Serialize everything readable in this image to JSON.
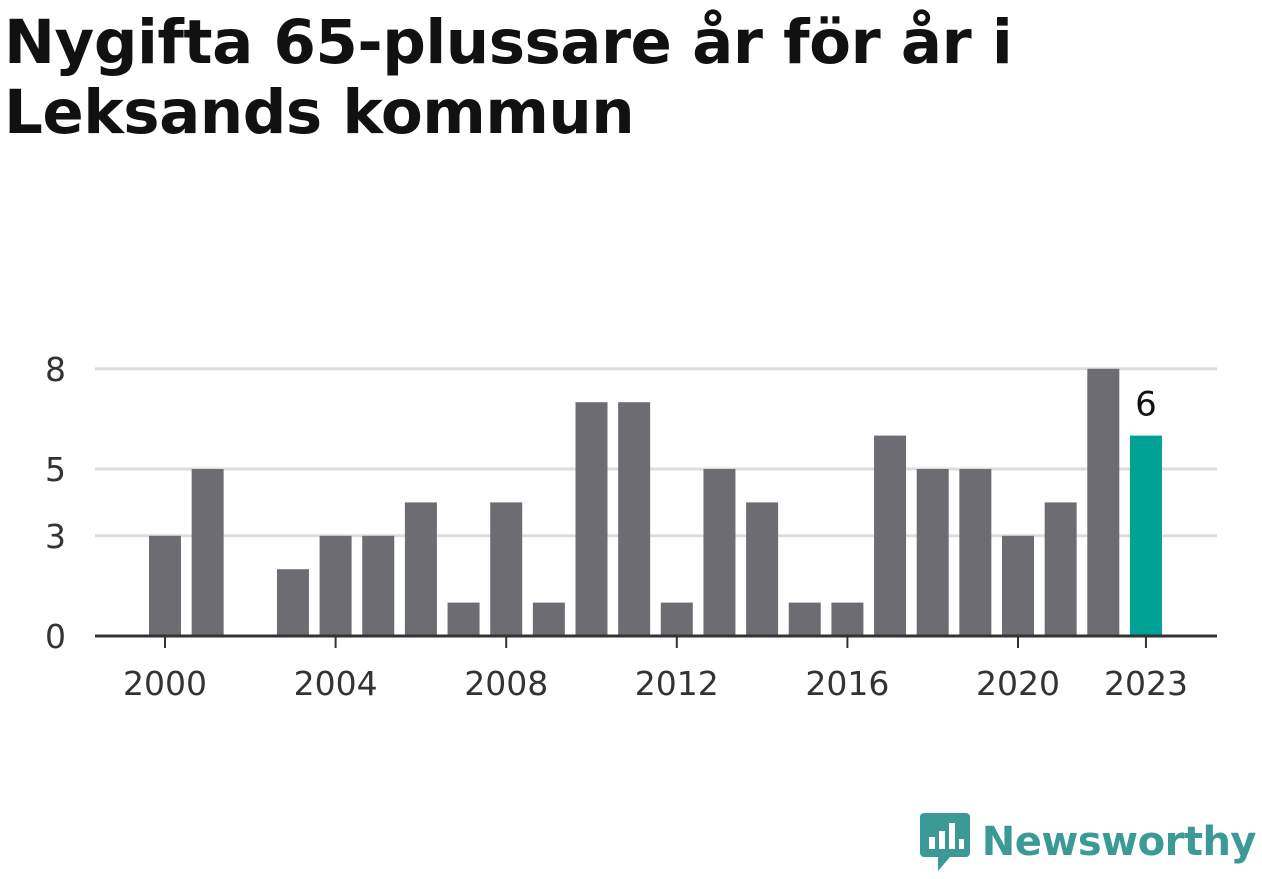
{
  "title": "Nygifta 65-plussare år för år i Leksands kommun",
  "brand": {
    "name": "Newsworthy",
    "icon": "newsworthy-logo-icon"
  },
  "colors": {
    "bar": "#6d6c72",
    "highlight": "#00a296",
    "grid": "#dddddd",
    "axis": "#333333"
  },
  "chart_data": {
    "type": "bar",
    "categories": [
      2000,
      2001,
      2002,
      2003,
      2004,
      2005,
      2006,
      2007,
      2008,
      2009,
      2010,
      2011,
      2012,
      2013,
      2014,
      2015,
      2016,
      2017,
      2018,
      2019,
      2020,
      2021,
      2022,
      2023
    ],
    "values": [
      3,
      5,
      0,
      2,
      3,
      3,
      4,
      1,
      4,
      1,
      7,
      7,
      1,
      5,
      4,
      1,
      1,
      6,
      5,
      5,
      3,
      4,
      8,
      6
    ],
    "ylim": [
      0,
      9
    ],
    "yticks": [
      0,
      3,
      5,
      8
    ],
    "xticks": [
      2000,
      2004,
      2008,
      2012,
      2016,
      2020,
      2023
    ],
    "highlight": {
      "category": 2023,
      "label": "6"
    },
    "grid": true
  }
}
